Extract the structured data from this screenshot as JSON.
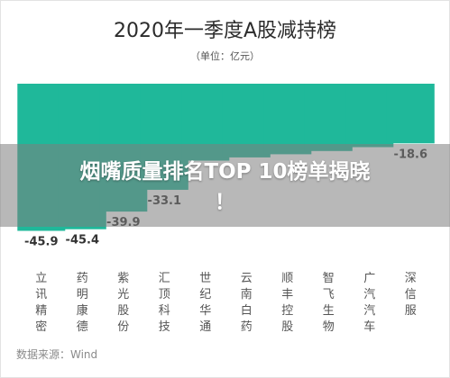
{
  "header": {
    "title": "2020年一季度A股减持榜",
    "unit": "（单位：亿元）"
  },
  "banner": {
    "line1": "烟嘴质量排名TOP 10榜单揭晓",
    "line2": "！"
  },
  "source": "数据来源：Wind",
  "colors": {
    "bar": "#1fb89a",
    "axis_text": "#555555",
    "value_text": "#333333"
  },
  "chart_data": {
    "type": "bar",
    "title": "2020年一季度A股减持榜",
    "ylabel": "（单位：亿元）",
    "categories": [
      "立讯精密",
      "药明康德",
      "紫光股份",
      "汇顶科技",
      "世纪华通",
      "云南白药",
      "顺丰控股",
      "智飞生物",
      "广汽汽车",
      "深信服"
    ],
    "values": [
      -45.9,
      -45.4,
      -39.9,
      -33.1,
      -24,
      -23,
      -22,
      -21,
      -19.8,
      -18.6
    ],
    "data_labels": [
      "-45.9",
      "-45.4",
      "-39.9",
      "-33.1",
      "",
      "",
      "",
      "",
      "",
      "-18.6"
    ],
    "ylim": [
      -48,
      0
    ],
    "grid": false
  }
}
